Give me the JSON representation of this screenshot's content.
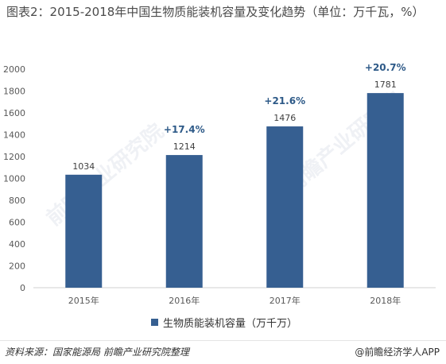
{
  "title": "图表2：2015-2018年中国生物质能装机容量及变化趋势（单位：万千瓦，%）",
  "source": "资料来源：国家能源局 前瞻产业研究院整理",
  "brand": "@前瞻经济学人APP",
  "watermark": "前瞻产业研究院",
  "chart_data": {
    "type": "bar",
    "categories": [
      "2015年",
      "2016年",
      "2017年",
      "2018年"
    ],
    "series": [
      {
        "name": "生物质能装机容量（万千万）",
        "values": [
          1034,
          1214,
          1476,
          1781
        ],
        "color": "#365f91"
      }
    ],
    "growth_labels": [
      "",
      "+17.4%",
      "+21.6%",
      "+20.7%"
    ],
    "growth_label_color": "#2e5a88",
    "ylim": [
      0,
      2000
    ],
    "yticks": [
      0,
      200,
      400,
      600,
      800,
      1000,
      1200,
      1400,
      1600,
      1800,
      2000
    ],
    "grid": false,
    "legend_position": "bottom",
    "xlabel": "",
    "ylabel": ""
  }
}
